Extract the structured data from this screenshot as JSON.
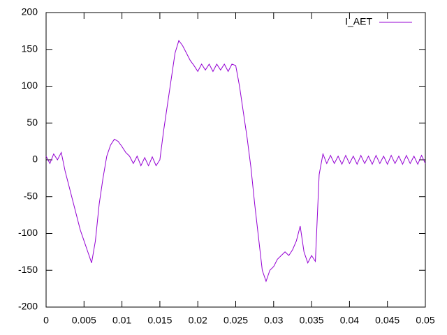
{
  "chart_data": {
    "type": "line",
    "x": [
      0,
      0.0005,
      0.001,
      0.0015,
      0.002,
      0.0025,
      0.003,
      0.0035,
      0.004,
      0.0045,
      0.005,
      0.0055,
      0.006,
      0.0065,
      0.007,
      0.0075,
      0.008,
      0.0085,
      0.009,
      0.0095,
      0.01,
      0.0105,
      0.011,
      0.0115,
      0.012,
      0.0125,
      0.013,
      0.0135,
      0.014,
      0.0145,
      0.015,
      0.0155,
      0.016,
      0.0165,
      0.017,
      0.0175,
      0.018,
      0.0185,
      0.019,
      0.0195,
      0.02,
      0.0205,
      0.021,
      0.0215,
      0.022,
      0.0225,
      0.023,
      0.0235,
      0.024,
      0.0245,
      0.025,
      0.0255,
      0.026,
      0.0265,
      0.027,
      0.0275,
      0.028,
      0.0285,
      0.029,
      0.0295,
      0.03,
      0.0305,
      0.031,
      0.0315,
      0.032,
      0.0325,
      0.033,
      0.0335,
      0.034,
      0.0345,
      0.035,
      0.0355,
      0.036,
      0.0365,
      0.037,
      0.0375,
      0.038,
      0.0385,
      0.039,
      0.0395,
      0.04,
      0.0405,
      0.041,
      0.0415,
      0.042,
      0.0425,
      0.043,
      0.0435,
      0.044,
      0.0445,
      0.045,
      0.0455,
      0.046,
      0.0465,
      0.047,
      0.0475,
      0.048,
      0.0485,
      0.049,
      0.0495,
      0.05
    ],
    "series": [
      {
        "name": "I_AET",
        "color": "#9400d3",
        "values": [
          5,
          -5,
          8,
          0,
          10,
          -15,
          -35,
          -55,
          -75,
          -95,
          -110,
          -125,
          -140,
          -110,
          -60,
          -25,
          5,
          20,
          28,
          25,
          18,
          10,
          5,
          -5,
          5,
          -8,
          3,
          -8,
          4,
          -8,
          0,
          40,
          75,
          110,
          145,
          162,
          155,
          145,
          135,
          128,
          120,
          130,
          122,
          130,
          120,
          130,
          122,
          130,
          120,
          130,
          128,
          100,
          65,
          30,
          -10,
          -60,
          -105,
          -150,
          -165,
          -150,
          -145,
          -135,
          -130,
          -125,
          -130,
          -122,
          -110,
          -90,
          -125,
          -140,
          -130,
          -138,
          -20,
          8,
          -5,
          6,
          -5,
          5,
          -6,
          6,
          -5,
          5,
          -6,
          6,
          -5,
          5,
          -6,
          6,
          -5,
          5,
          -6,
          6,
          -5,
          5,
          -6,
          6,
          -5,
          5,
          -6,
          6,
          -5
        ]
      }
    ],
    "xlim": [
      0,
      0.05
    ],
    "xticks": [
      0,
      0.005,
      0.01,
      0.015,
      0.02,
      0.025,
      0.03,
      0.035,
      0.04,
      0.045,
      0.05
    ],
    "ylim": [
      -200,
      200
    ],
    "yticks": [
      -200,
      -150,
      -100,
      -50,
      0,
      50,
      100,
      150,
      200
    ],
    "legend": "top right"
  }
}
